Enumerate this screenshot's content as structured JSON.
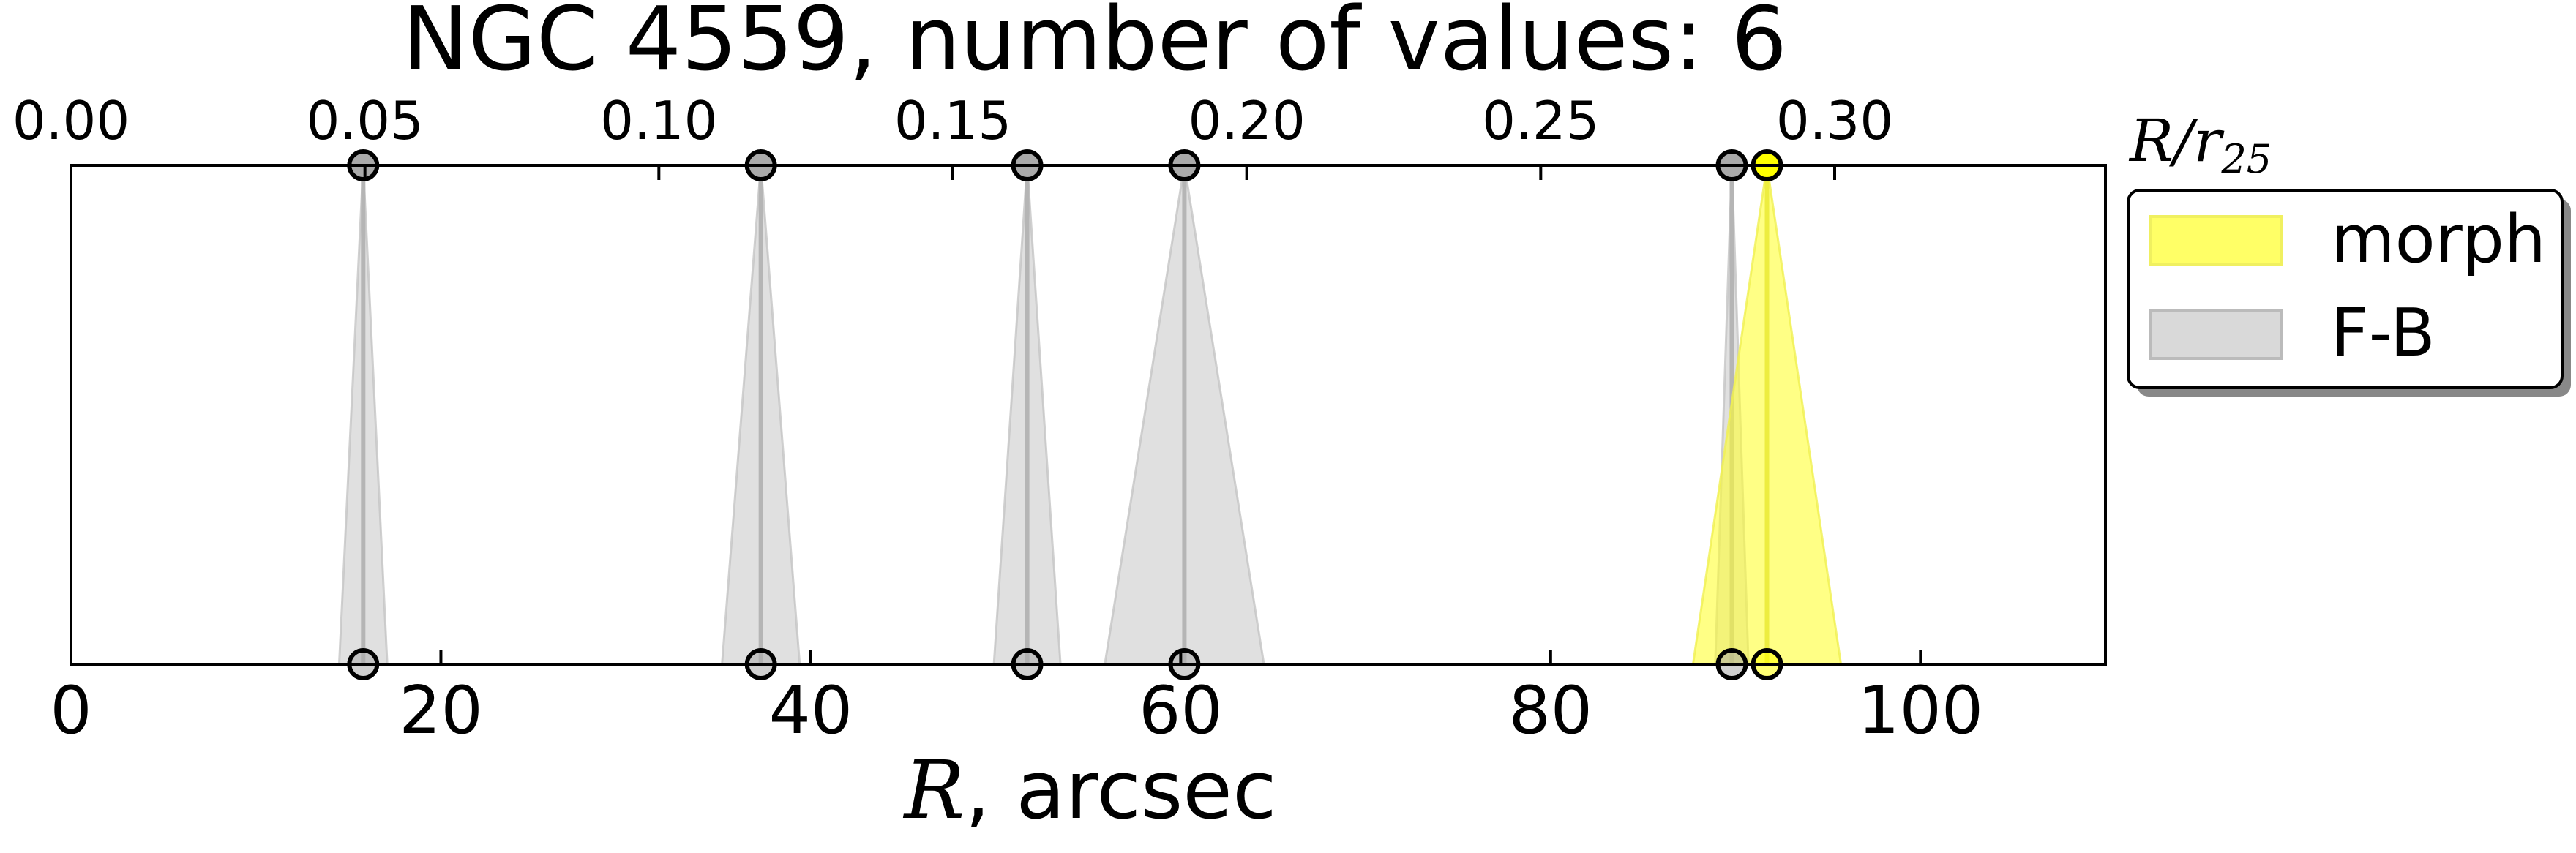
{
  "chart_data": {
    "type": "scatter",
    "title": "NGC 4559, number of values: 6",
    "xlabel_math": "R",
    "xlabel_rest": ", arcsec",
    "top_axis_label_main": "R/r",
    "top_axis_label_sub": "25",
    "xlim": [
      0,
      110
    ],
    "xticks": [
      0,
      20,
      40,
      60,
      80,
      100
    ],
    "top_xticks": [
      "0.00",
      "0.05",
      "0.10",
      "0.15",
      "0.20",
      "0.25",
      "0.30"
    ],
    "r25_per_arcsec": 0.003146,
    "grid": false,
    "legend_position": "right",
    "legend": [
      {
        "label": "morph",
        "color": "#ffff33"
      },
      {
        "label": "F-B",
        "color": "#cccccc"
      }
    ],
    "series": [
      {
        "name": "F-B",
        "color": "#cccccc",
        "points": [
          {
            "r": 15.8,
            "err": 1.3
          },
          {
            "r": 37.3,
            "err": 2.1
          },
          {
            "r": 51.7,
            "err": 1.8
          },
          {
            "r": 60.2,
            "err": 4.3
          },
          {
            "r": 89.8,
            "err": 0.9
          }
        ]
      },
      {
        "name": "morph",
        "color": "#ffff33",
        "points": [
          {
            "r": 91.7,
            "err": 4.0
          }
        ]
      }
    ]
  }
}
